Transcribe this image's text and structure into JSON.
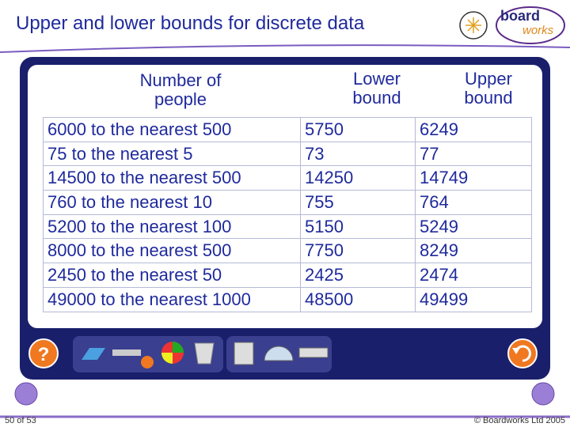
{
  "header": {
    "title": "Upper and lower bounds for discrete data",
    "logo_top": "board",
    "logo_bottom": "works"
  },
  "table": {
    "columns": [
      "Number of people",
      "Lower bound",
      "Upper bound"
    ],
    "rows": [
      [
        "6000 to the nearest 500",
        "5750",
        "6249"
      ],
      [
        "75 to the nearest 5",
        "73",
        "77"
      ],
      [
        "14500 to the nearest 500",
        "14250",
        "14749"
      ],
      [
        "760 to the nearest 10",
        "755",
        "764"
      ],
      [
        "5200 to the nearest 100",
        "5150",
        "5249"
      ],
      [
        "8000 to the nearest 500",
        "7750",
        "8249"
      ],
      [
        "2450 to the nearest 50",
        "2425",
        "2474"
      ],
      [
        "49000 to the nearest 1000",
        "48500",
        "49499"
      ]
    ]
  },
  "footer": {
    "page": "50 of 53",
    "copyright": "© Boardworks Ltd 2005"
  }
}
